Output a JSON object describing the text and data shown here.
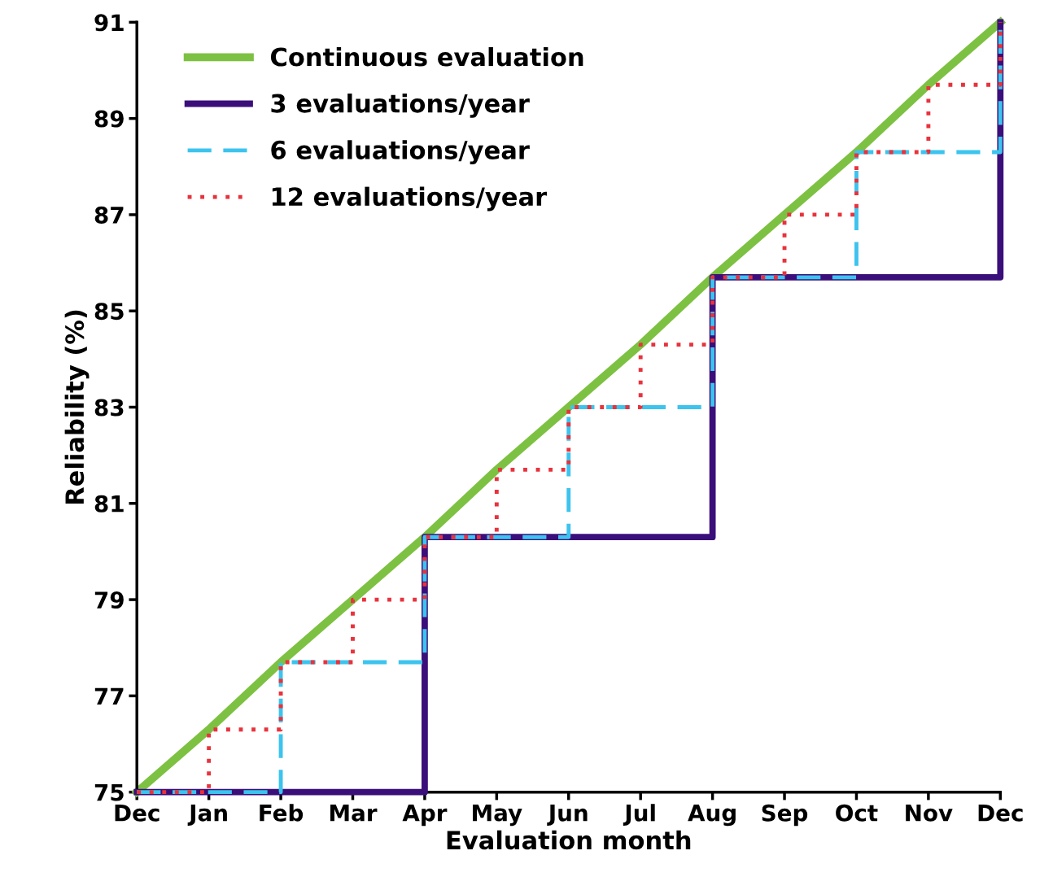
{
  "chart_data": {
    "type": "line",
    "xlabel": "Evaluation month",
    "ylabel": "Reliability (%)",
    "categories": [
      "Dec",
      "Jan",
      "Feb",
      "Mar",
      "Apr",
      "May",
      "Jun",
      "Jul",
      "Aug",
      "Sep",
      "Oct",
      "Nov",
      "Dec"
    ],
    "ylim": [
      75,
      91
    ],
    "yticks": [
      75,
      77,
      79,
      81,
      83,
      85,
      87,
      89,
      91
    ],
    "grid": false,
    "legend": "top left",
    "series": [
      {
        "name": "Continuous evaluation",
        "color": "#7dc142",
        "line_style": "solid",
        "values": [
          75,
          76.3,
          77.7,
          79,
          80.3,
          81.7,
          83,
          84.3,
          85.7,
          87,
          88.3,
          89.7,
          91
        ]
      },
      {
        "name": "3 evaluations/year",
        "type": "step",
        "color": "#3b0f7a",
        "line_style": "solid",
        "values": [
          75,
          75,
          75,
          75,
          80.3,
          80.3,
          80.3,
          80.3,
          85.7,
          85.7,
          85.7,
          85.7,
          91
        ]
      },
      {
        "name": "6 evaluations/year",
        "type": "step",
        "color": "#3cc4ee",
        "line_style": "dashed",
        "values": [
          75,
          75,
          77.7,
          77.7,
          80.3,
          80.3,
          83,
          83,
          85.7,
          85.7,
          88.3,
          88.3,
          91
        ]
      },
      {
        "name": "12 evaluations/year",
        "type": "step",
        "color": "#e8323c",
        "line_style": "dotted",
        "values": [
          75,
          76.3,
          77.7,
          79,
          80.3,
          81.7,
          83,
          84.3,
          85.7,
          87,
          88.3,
          89.7,
          91
        ]
      }
    ]
  }
}
